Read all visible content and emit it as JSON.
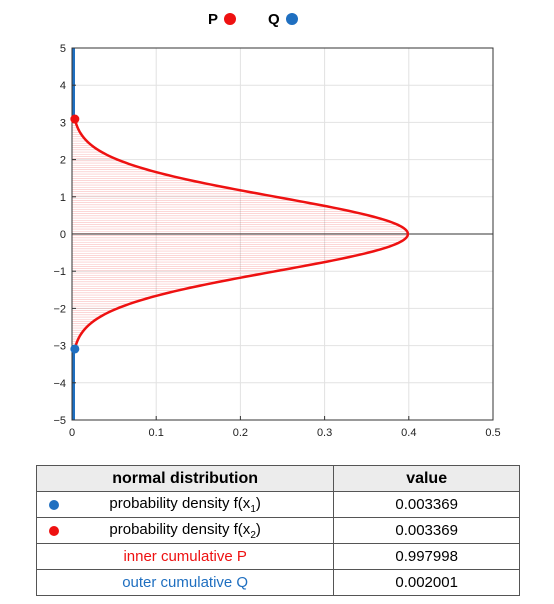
{
  "legend": {
    "p": {
      "label": "P",
      "color": "#ee1111"
    },
    "q": {
      "label": "Q",
      "color": "#1f6fc0"
    }
  },
  "chart_data": {
    "type": "line",
    "title": "",
    "xlabel": "",
    "ylabel": "",
    "xlim": [
      0,
      0.5
    ],
    "ylim": [
      -5,
      5
    ],
    "x_ticks": [
      "0",
      "0.1",
      "0.2",
      "0.3",
      "0.4",
      "0.5"
    ],
    "y_ticks": [
      "5",
      "4",
      "3",
      "2",
      "1",
      "0",
      "−1",
      "−2",
      "−3",
      "−4",
      "−5"
    ],
    "grid": true,
    "orientation": "density along x, variable along y",
    "series": [
      {
        "name": "P",
        "color": "#ee1111",
        "curve": "normal density f(y) = exp(-y^2/2)/sqrt(2*pi)",
        "x_bound": [
          -3.09,
          3.09
        ],
        "fill": "vertical hatch lines between y = -3.09 and y = 3.09"
      },
      {
        "name": "Q",
        "color": "#1f6fc0",
        "tails": [
          [
            -5,
            -3.09
          ],
          [
            3.09,
            5
          ]
        ]
      }
    ],
    "points": [
      {
        "name": "x2",
        "x": 0.003369,
        "y": 3.09,
        "color": "#ee1111"
      },
      {
        "name": "x1",
        "x": 0.003369,
        "y": -3.09,
        "color": "#1f6fc0"
      }
    ]
  },
  "table": {
    "headers": [
      "normal distribution",
      "value"
    ],
    "rows": [
      {
        "dot": "#1f6fc0",
        "label": "probability density f(x",
        "sub": "1",
        "tail": ")",
        "value": "0.003369",
        "color": "#000000"
      },
      {
        "dot": "#ee1111",
        "label": "probability density f(x",
        "sub": "2",
        "tail": ")",
        "value": "0.003369",
        "color": "#000000"
      },
      {
        "dot": "",
        "label": "inner cumulative P",
        "sub": "",
        "tail": "",
        "value": "0.997998",
        "color": "#ee1111"
      },
      {
        "dot": "",
        "label": "outer cumulative Q",
        "sub": "",
        "tail": "",
        "value": "0.002001",
        "color": "#1f6fc0"
      }
    ]
  }
}
